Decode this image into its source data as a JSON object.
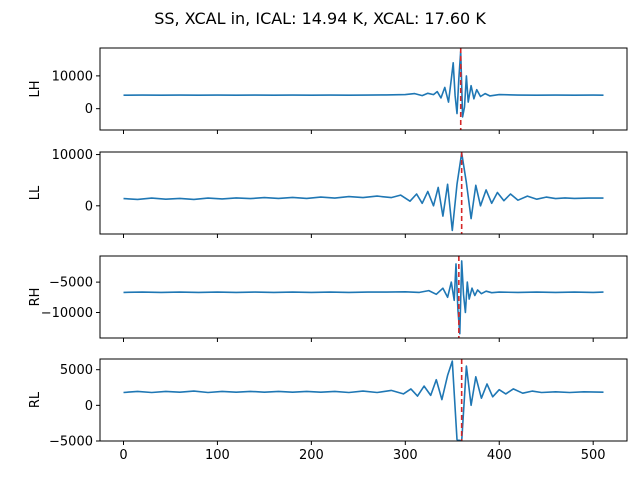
{
  "chart_data": {
    "type": "line",
    "title": "SS, XCAL in, ICAL: 14.94 K, XCAL: 17.60 K",
    "shared_x": true,
    "xlim": [
      -25,
      536
    ],
    "x_ticks": [
      0,
      100,
      200,
      300,
      400,
      500
    ],
    "x_tick_labels": [
      "0",
      "100",
      "200",
      "300",
      "400",
      "500"
    ],
    "line_color": "#1f77b4",
    "marker_color": "#d62728",
    "panels": [
      {
        "ylabel": "LH",
        "ylim": [
          -6500,
          18500
        ],
        "y_ticks": [
          0,
          10000
        ],
        "y_tick_labels": [
          "0",
          "10000"
        ],
        "marker_x": 359,
        "series": [
          {
            "x": [
              0,
              20,
              40,
              60,
              80,
              100,
              120,
              140,
              160,
              180,
              200,
              220,
              240,
              260,
              280,
              300,
              310,
              318,
              324,
              330,
              334,
              338,
              342,
              346,
              349,
              351,
              353,
              355,
              357,
              359,
              361,
              363,
              365,
              367,
              370,
              373,
              376,
              380,
              385,
              390,
              400,
              420,
              440,
              460,
              480,
              500,
              511
            ],
            "y": [
              4100,
              4150,
              4100,
              4150,
              4100,
              4150,
              4100,
              4150,
              4100,
              4150,
              4100,
              4150,
              4100,
              4150,
              4200,
              4300,
              4600,
              4000,
              4700,
              4300,
              5200,
              3300,
              6500,
              2000,
              9000,
              14000,
              4000,
              -1500,
              9000,
              17500,
              -2500,
              500,
              10000,
              2000,
              7000,
              3000,
              5800,
              3700,
              4600,
              3900,
              4300,
              4150,
              4100,
              4150,
              4100,
              4150,
              4100
            ]
          }
        ]
      },
      {
        "ylabel": "LL",
        "ylim": [
          -5500,
          10500
        ],
        "y_ticks": [
          0,
          10000
        ],
        "y_tick_labels": [
          "0",
          "10000"
        ],
        "marker_x": 360,
        "series": [
          {
            "x": [
              0,
              15,
              30,
              45,
              60,
              75,
              90,
              105,
              120,
              135,
              150,
              165,
              180,
              195,
              210,
              225,
              240,
              255,
              270,
              285,
              295,
              305,
              312,
              318,
              324,
              330,
              335,
              340,
              345,
              350,
              355,
              360,
              365,
              370,
              375,
              380,
              386,
              392,
              398,
              405,
              412,
              420,
              430,
              440,
              450,
              460,
              470,
              480,
              495,
              511
            ],
            "y": [
              1400,
              1250,
              1500,
              1300,
              1450,
              1250,
              1500,
              1350,
              1550,
              1400,
              1600,
              1450,
              1650,
              1450,
              1700,
              1500,
              1800,
              1600,
              1900,
              1600,
              2100,
              900,
              2300,
              500,
              2800,
              0,
              3600,
              -2000,
              4200,
              -4800,
              4200,
              10300,
              4500,
              -2500,
              4000,
              0,
              3100,
              500,
              2600,
              1000,
              2300,
              1100,
              1900,
              1300,
              1700,
              1400,
              1550,
              1450,
              1500,
              1500
            ]
          }
        ]
      },
      {
        "ylabel": "RH",
        "ylim": [
          -14200,
          -700
        ],
        "y_ticks": [
          -10000,
          -5000
        ],
        "y_tick_labels": [
          "−10000",
          "−5000"
        ],
        "marker_x": 357,
        "series": [
          {
            "x": [
              0,
              20,
              40,
              60,
              80,
              100,
              120,
              140,
              160,
              180,
              200,
              220,
              240,
              260,
              280,
              300,
              315,
              325,
              333,
              340,
              345,
              349,
              352,
              354,
              356,
              358,
              360,
              362,
              364,
              366,
              368,
              371,
              374,
              377,
              381,
              386,
              392,
              400,
              420,
              440,
              460,
              480,
              500,
              511
            ],
            "y": [
              -6700,
              -6650,
              -6700,
              -6650,
              -6700,
              -6650,
              -6700,
              -6650,
              -6700,
              -6650,
              -6700,
              -6650,
              -6700,
              -6650,
              -6650,
              -6600,
              -6700,
              -6400,
              -7000,
              -6000,
              -7500,
              -5000,
              -8000,
              -2000,
              -9500,
              -13500,
              -1500,
              -7000,
              -10000,
              -5000,
              -7800,
              -6000,
              -7200,
              -6300,
              -6900,
              -6500,
              -6750,
              -6650,
              -6700,
              -6650,
              -6700,
              -6650,
              -6700,
              -6650
            ]
          }
        ]
      },
      {
        "ylabel": "RL",
        "ylim": [
          -5000,
          6500
        ],
        "y_ticks": [
          -5000,
          0,
          5000
        ],
        "y_tick_labels": [
          "−5000",
          "0",
          "5000"
        ],
        "marker_x": 360,
        "series": [
          {
            "x": [
              0,
              15,
              30,
              45,
              60,
              75,
              90,
              105,
              120,
              135,
              150,
              165,
              180,
              195,
              210,
              225,
              240,
              255,
              270,
              285,
              298,
              306,
              313,
              320,
              327,
              333,
              339,
              345,
              350,
              355,
              360,
              365,
              370,
              375,
              381,
              387,
              393,
              400,
              407,
              415,
              425,
              435,
              445,
              460,
              475,
              490,
              511
            ],
            "y": [
              1800,
              1950,
              1800,
              1950,
              1850,
              2000,
              1800,
              1950,
              1850,
              1950,
              1850,
              1950,
              1850,
              1950,
              1850,
              1950,
              1800,
              2000,
              1800,
              2100,
              1600,
              2300,
              1300,
              2700,
              1400,
              3600,
              800,
              4200,
              6200,
              -4800,
              -5000,
              5500,
              0,
              4000,
              1000,
              3000,
              1200,
              2200,
              1600,
              2300,
              1700,
              2000,
              1800,
              1900,
              1800,
              1900,
              1850
            ]
          }
        ]
      }
    ]
  }
}
